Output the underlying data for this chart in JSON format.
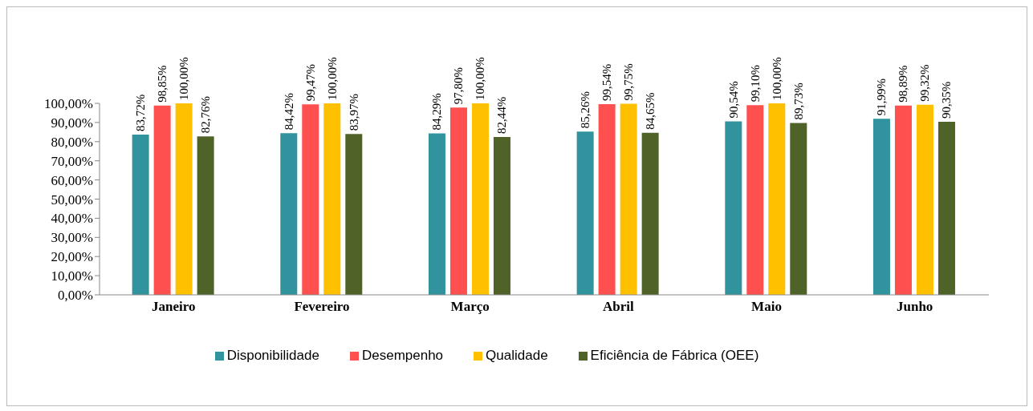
{
  "chart_data": {
    "type": "bar",
    "categories": [
      "Janeiro",
      "Fevereiro",
      "Março",
      "Abril",
      "Maio",
      "Junho"
    ],
    "series": [
      {
        "name": "Disponibilidade",
        "color": "#31939e",
        "values": [
          83.72,
          84.42,
          84.29,
          85.26,
          90.54,
          91.99
        ],
        "value_labels": [
          "83,72%",
          "84,42%",
          "84,29%",
          "85,26%",
          "90,54%",
          "91,99%"
        ]
      },
      {
        "name": "Desempenho",
        "color": "#ff5050",
        "values": [
          98.85,
          99.47,
          97.8,
          99.54,
          99.1,
          98.89
        ],
        "value_labels": [
          "98,85%",
          "99,47%",
          "97,80%",
          "99,54%",
          "99,10%",
          "98,89%"
        ]
      },
      {
        "name": "Qualidade",
        "color": "#ffc000",
        "values": [
          100.0,
          100.0,
          100.0,
          99.75,
          100.0,
          99.32
        ],
        "value_labels": [
          "100,00%",
          "100,00%",
          "100,00%",
          "99,75%",
          "100,00%",
          "99,32%"
        ]
      },
      {
        "name": "Eficiência de Fábrica  (OEE)",
        "color": "#4f6228",
        "values": [
          82.76,
          83.97,
          82.44,
          84.65,
          89.73,
          90.35
        ],
        "value_labels": [
          "82,76%",
          "83,97%",
          "82,44%",
          "84,65%",
          "89,73%",
          "90,35%"
        ]
      }
    ],
    "ylim": [
      0,
      100
    ],
    "yticks": [
      {
        "value": 0,
        "label": "0,00%"
      },
      {
        "value": 10,
        "label": "10,00%"
      },
      {
        "value": 20,
        "label": "20,00%"
      },
      {
        "value": 30,
        "label": "30,00%"
      },
      {
        "value": 40,
        "label": "40,00%"
      },
      {
        "value": 50,
        "label": "50,00%"
      },
      {
        "value": 60,
        "label": "60,00%"
      },
      {
        "value": 70,
        "label": "70,00%"
      },
      {
        "value": 80,
        "label": "80,00%"
      },
      {
        "value": 90,
        "label": "90,00%"
      },
      {
        "value": 100,
        "label": "100,00%"
      }
    ],
    "grid": false,
    "legend": "bottom"
  }
}
